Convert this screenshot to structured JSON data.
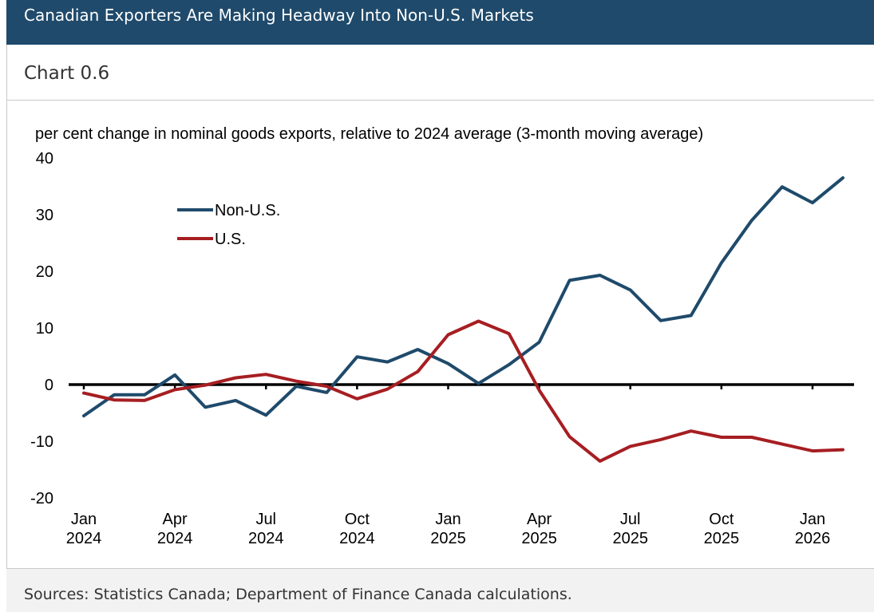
{
  "header": {
    "title": "Canadian Exporters Are Making Headway Into Non-U.S. Markets"
  },
  "subhead": {
    "chart_number": "Chart 0.6"
  },
  "footer": {
    "sources": "Sources: Statistics Canada; Department of Finance Canada calculations."
  },
  "chart_data": {
    "type": "line",
    "title": "per cent change in nominal goods exports, relative to 2024 average (3-month moving average)",
    "xlabel": "",
    "ylabel": "",
    "ylim": [
      -20,
      40
    ],
    "yticks": [
      40,
      30,
      20,
      10,
      0,
      -10,
      -20
    ],
    "months": [
      "Jan 2024",
      "Feb 2024",
      "Mar 2024",
      "Apr 2024",
      "May 2024",
      "Jun 2024",
      "Jul 2024",
      "Aug 2024",
      "Sep 2024",
      "Oct 2024",
      "Nov 2024",
      "Dec 2024",
      "Jan 2025",
      "Feb 2025",
      "Mar 2025",
      "Apr 2025",
      "May 2025",
      "Jun 2025",
      "Jul 2025",
      "Aug 2025",
      "Sep 2025",
      "Oct 2025",
      "Nov 2025",
      "Dec 2025",
      "Jan 2026",
      "Feb 2026"
    ],
    "xtick_labels": [
      {
        "index": 0,
        "line1": "Jan",
        "line2": "2024"
      },
      {
        "index": 3,
        "line1": "Apr",
        "line2": "2024"
      },
      {
        "index": 6,
        "line1": "Jul",
        "line2": "2024"
      },
      {
        "index": 9,
        "line1": "Oct",
        "line2": "2024"
      },
      {
        "index": 12,
        "line1": "Jan",
        "line2": "2025"
      },
      {
        "index": 15,
        "line1": "Apr",
        "line2": "2025"
      },
      {
        "index": 18,
        "line1": "Jul",
        "line2": "2025"
      },
      {
        "index": 21,
        "line1": "Oct",
        "line2": "2025"
      },
      {
        "index": 24,
        "line1": "Jan",
        "line2": "2026"
      }
    ],
    "series": [
      {
        "name": "Non-U.S.",
        "color": "#1f4a6b",
        "values": [
          -5.5,
          -1.8,
          -1.8,
          1.7,
          -4.0,
          -2.8,
          -5.4,
          -0.3,
          -1.4,
          4.9,
          4.0,
          6.2,
          3.7,
          0.2,
          3.5,
          7.5,
          18.4,
          19.3,
          16.7,
          11.3,
          12.2,
          21.5,
          29.0,
          34.9,
          32.1,
          36.5
        ]
      },
      {
        "name": "U.S.",
        "color": "#a61e22",
        "values": [
          -1.5,
          -2.7,
          -2.8,
          -0.9,
          -0.1,
          1.2,
          1.8,
          0.6,
          -0.3,
          -2.5,
          -0.8,
          2.3,
          8.8,
          11.2,
          9.0,
          -1.0,
          -9.2,
          -13.5,
          -10.9,
          -9.7,
          -8.2,
          -9.3,
          -9.3,
          -10.5,
          -11.7,
          -11.5
        ]
      }
    ],
    "legend": {
      "placement": "top-left"
    },
    "grid": false
  }
}
